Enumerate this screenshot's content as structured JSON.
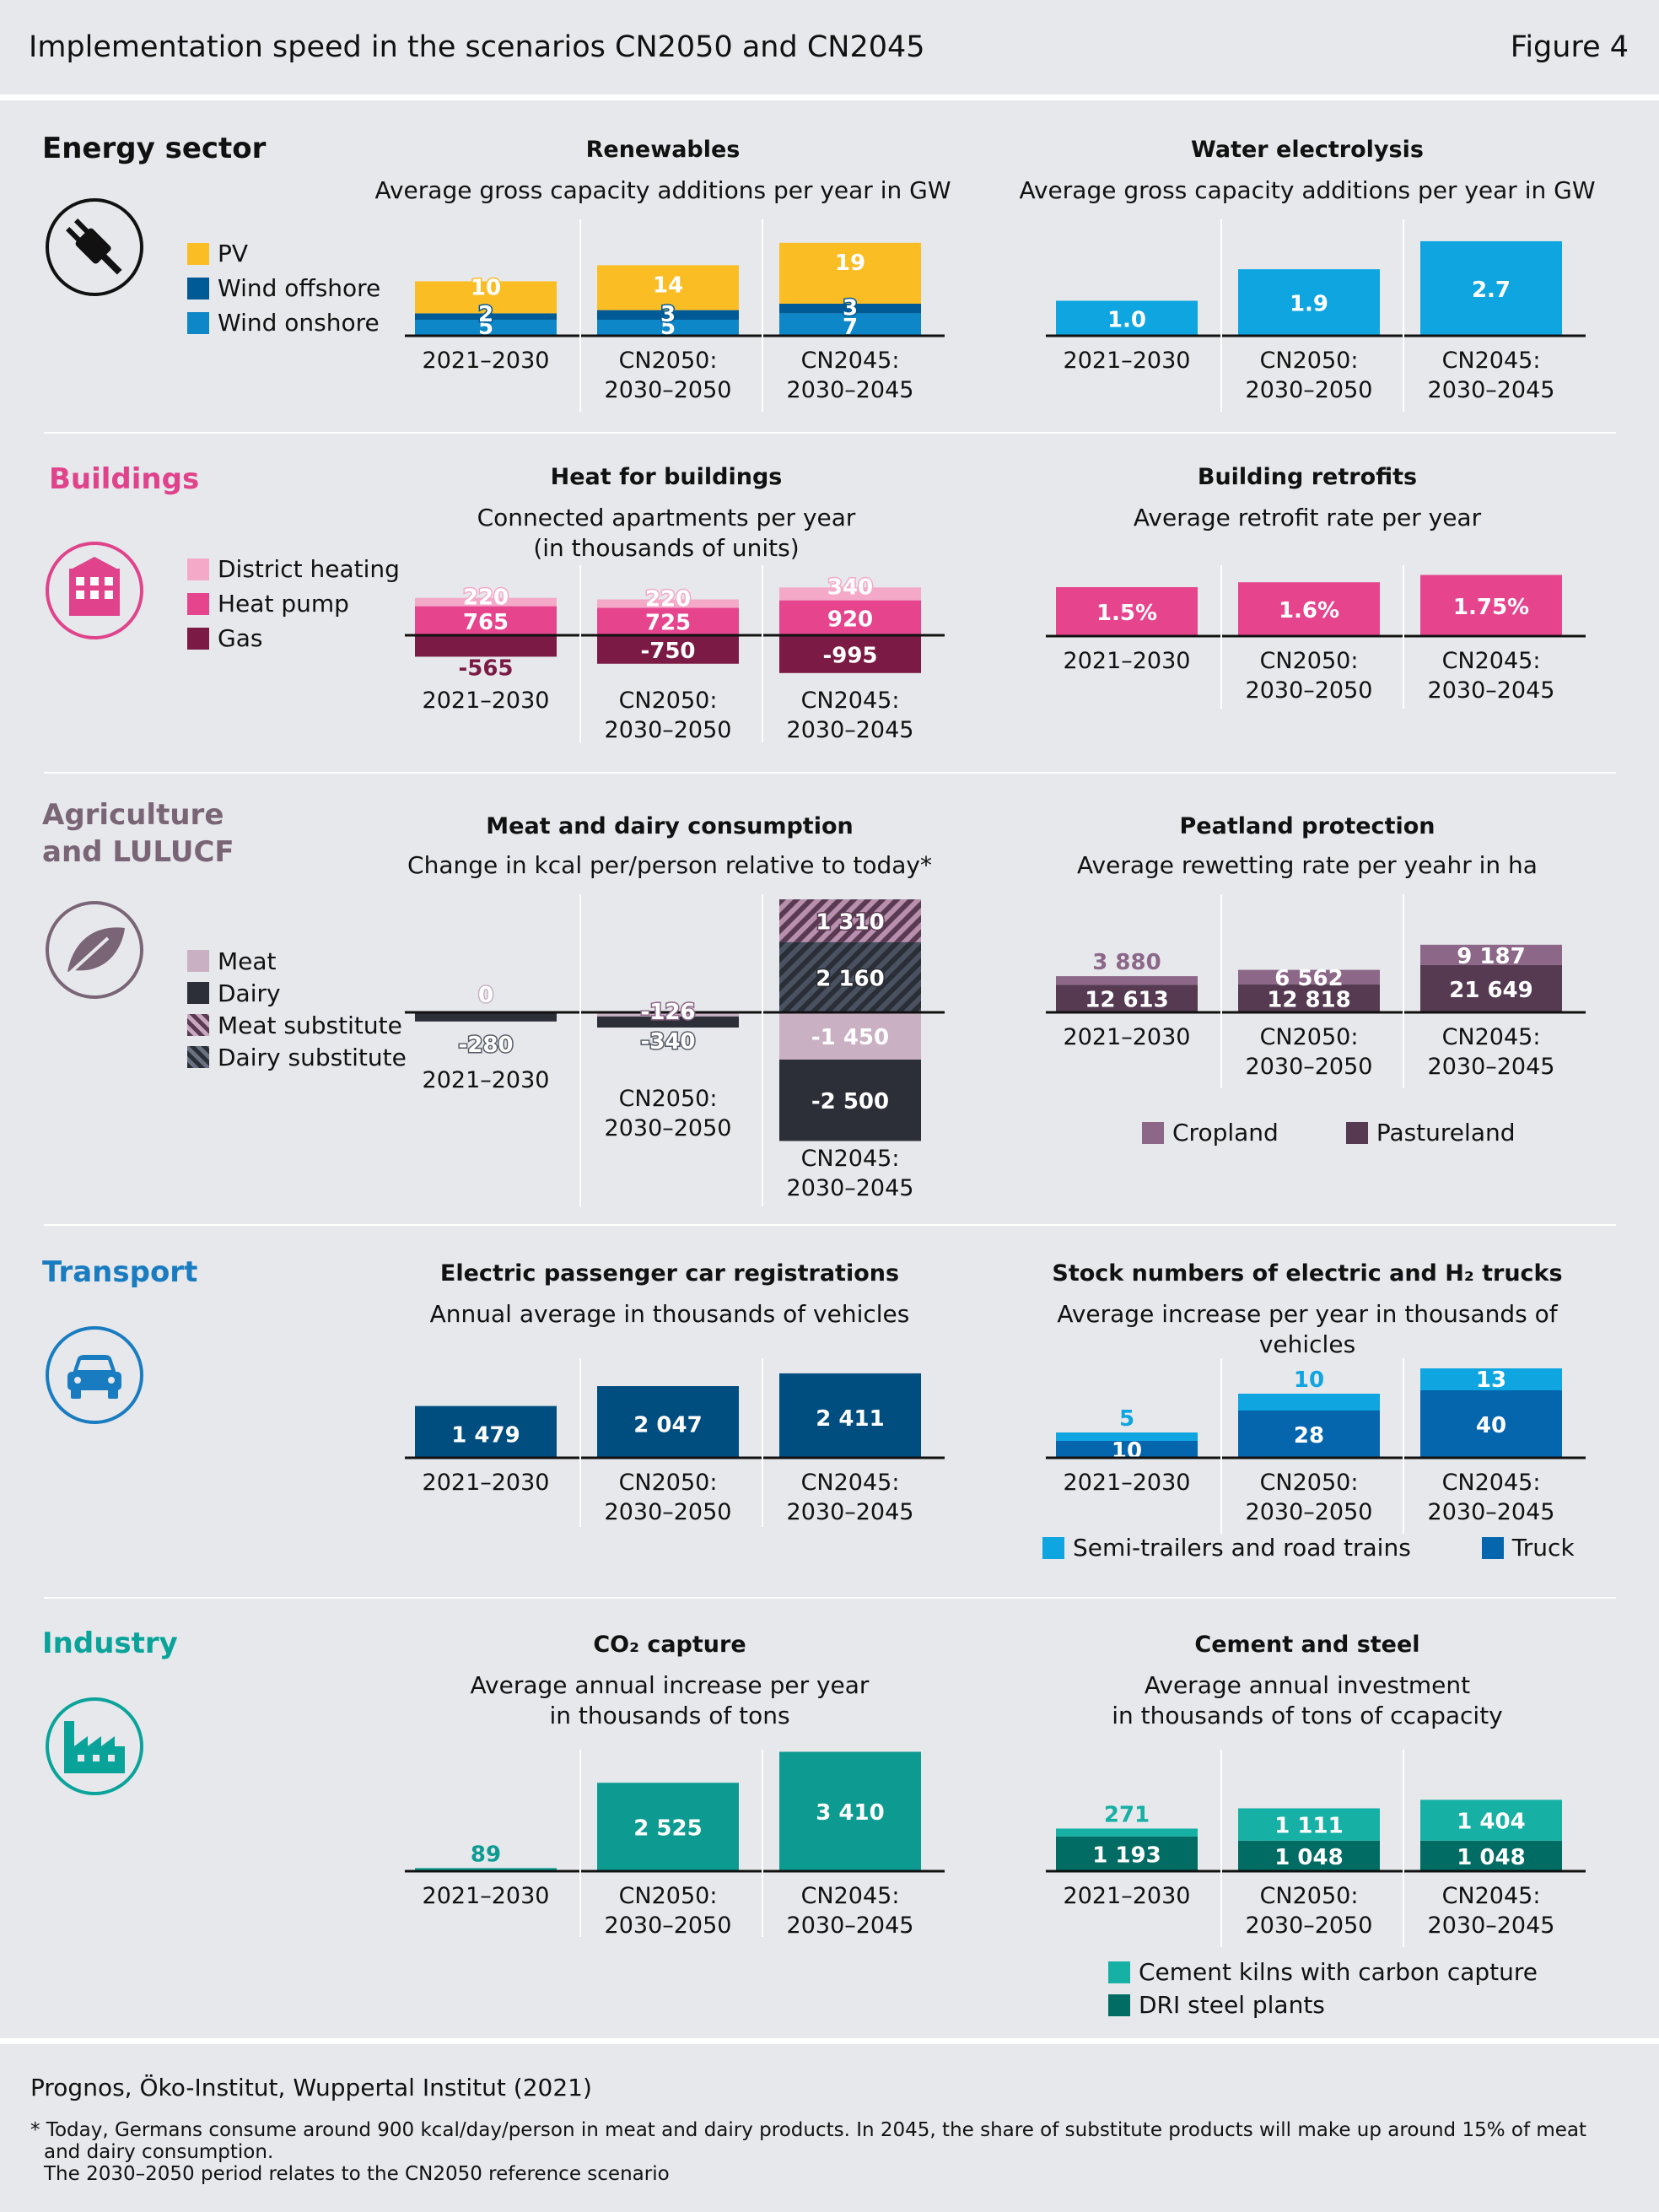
{
  "figure": {
    "title": "Implementation speed in the scenarios CN2050 and CN2045",
    "number": "Figure 4"
  },
  "footer": {
    "source": "Prognos, Öko-Institut, Wuppertal Institut (2021)",
    "note1": "* Today, Germans consume around 900 kcal/day/person in meat and dairy products. In 2045, the share of substitute products will make up around 15% of meat",
    "note2": "and dairy consumption.",
    "note3": "The 2030–2050 period relates to the CN2050 reference scenario"
  },
  "colors": {
    "pv": "#fbbd24",
    "wind_offshore": "#005a96",
    "wind_onshore": "#0e87c8",
    "electrolysis": "#0ea5e0",
    "district_heating": "#f4a9c9",
    "heat_pump": "#e7448e",
    "gas": "#7b1a45",
    "meat": "#c9b0c3",
    "dairy": "#2c2f38",
    "cropland": "#8c6788",
    "pastureland": "#553a52",
    "ev": "#004d80",
    "semi_trailers": "#0ea5e0",
    "truck": "#0566ae",
    "co2": "#0d9b91",
    "cement": "#16b0a5",
    "dri": "#006c63",
    "energy": "#111111",
    "buildings": "#e0438b",
    "agriculture": "#7a6576",
    "transport": "#1a7cc0",
    "industry": "#0aa39a"
  },
  "sections": {
    "energy": {
      "title": "Energy sector",
      "icon": "plug-icon"
    },
    "buildings": {
      "title": "Buildings",
      "icon": "building-icon"
    },
    "agriculture": {
      "title1": "Agriculture",
      "title2": "and LULUCF",
      "icon": "leaf-icon"
    },
    "transport": {
      "title": "Transport",
      "icon": "car-icon"
    },
    "industry": {
      "title": "Industry",
      "icon": "factory-icon"
    }
  },
  "legends": {
    "energy": [
      "PV",
      "Wind offshore",
      "Wind onshore"
    ],
    "buildings": [
      "District heating",
      "Heat pump",
      "Gas"
    ],
    "agriculture": [
      "Meat",
      "Dairy",
      "Meat substitute",
      "Dairy substitute"
    ],
    "peatland": [
      "Cropland",
      "Pastureland"
    ],
    "trucks": [
      "Semi-trailers and road trains",
      "Truck"
    ],
    "cement": [
      "Cement kilns with carbon capture",
      "DRI steel plants"
    ]
  },
  "chart_data": [
    {
      "id": "renewables",
      "type": "bar",
      "stacked": true,
      "title": "Renewables",
      "subtitle": "Average gross capacity additions per year in GW",
      "categories": [
        "2021–2030",
        "CN2050:\n2030–2050",
        "CN2045:\n2030–2045"
      ],
      "series": [
        {
          "name": "Wind onshore",
          "values": [
            5,
            5,
            7
          ],
          "labels": [
            "5",
            "5",
            "7"
          ]
        },
        {
          "name": "Wind offshore",
          "values": [
            2,
            3,
            3
          ],
          "labels": [
            "2",
            "3",
            "3"
          ]
        },
        {
          "name": "PV",
          "values": [
            10,
            14,
            19
          ],
          "labels": [
            "10",
            "14",
            "19"
          ]
        }
      ]
    },
    {
      "id": "electrolysis",
      "type": "bar",
      "title": "Water electrolysis",
      "subtitle": "Average gross capacity additions per year in GW",
      "categories": [
        "2021–2030",
        "CN2050:\n2030–2050",
        "CN2045:\n2030–2045"
      ],
      "series": [
        {
          "name": "",
          "values": [
            1.0,
            1.9,
            2.7
          ],
          "labels": [
            "1.0",
            "1.9",
            "2.7"
          ]
        }
      ]
    },
    {
      "id": "heat",
      "type": "bar",
      "stacked": true,
      "title": "Heat for buildings",
      "subtitle": "Connected apartments per year\n(in thousands of units)",
      "categories": [
        "2021–2030",
        "CN2050:\n2030–2050",
        "CN2045:\n2030–2045"
      ],
      "series": [
        {
          "name": "Heat pump",
          "values": [
            765,
            725,
            920
          ],
          "labels": [
            "765",
            "725",
            "920"
          ]
        },
        {
          "name": "District heating",
          "values": [
            220,
            220,
            340
          ],
          "labels": [
            "220",
            "220",
            "340"
          ]
        },
        {
          "name": "Gas",
          "values": [
            -565,
            -750,
            -995
          ],
          "labels": [
            "-565",
            "-750",
            "-995"
          ]
        }
      ]
    },
    {
      "id": "retrofit",
      "type": "bar",
      "title": "Building retrofits",
      "subtitle": "Average retrofit rate per year",
      "categories": [
        "2021–2030",
        "CN2050:\n2030–2050",
        "CN2045:\n2030–2045"
      ],
      "series": [
        {
          "name": "",
          "values": [
            1.5,
            1.6,
            1.75
          ],
          "labels": [
            "1.5%",
            "1.6%",
            "1.75%"
          ]
        }
      ]
    },
    {
      "id": "meat",
      "type": "bar",
      "stacked": true,
      "title": "Meat and dairy consumption",
      "subtitle": "Change in kcal per/person relative to today*",
      "categories": [
        "2021–2030",
        "CN2050:\n2030–2050",
        "CN2045:\n2030–2045"
      ],
      "series": [
        {
          "name": "Dairy substitute",
          "values": [
            0,
            0,
            2160
          ],
          "labels": [
            "0",
            "",
            "2 160"
          ]
        },
        {
          "name": "Meat substitute",
          "values": [
            0,
            0,
            1310
          ],
          "labels": [
            "",
            "",
            "1 310"
          ]
        },
        {
          "name": "Meat",
          "values": [
            0,
            -126,
            -1450
          ],
          "labels": [
            "",
            "-126",
            "-1 450"
          ]
        },
        {
          "name": "Dairy",
          "values": [
            -280,
            -340,
            -2500
          ],
          "labels": [
            "-280",
            "-340",
            "-2 500"
          ]
        }
      ]
    },
    {
      "id": "peatland",
      "type": "bar",
      "stacked": true,
      "title": "Peatland protection",
      "subtitle": "Average rewetting rate per yeahr in ha",
      "categories": [
        "2021–2030",
        "CN2050:\n2030–2050",
        "CN2045:\n2030–2045"
      ],
      "series": [
        {
          "name": "Pastureland",
          "values": [
            12613,
            12818,
            21649
          ],
          "labels": [
            "12 613",
            "12 818",
            "21 649"
          ]
        },
        {
          "name": "Cropland",
          "values": [
            3880,
            6562,
            9187
          ],
          "labels": [
            "3 880",
            "6 562",
            "9 187"
          ]
        }
      ]
    },
    {
      "id": "ev",
      "type": "bar",
      "title": "Electric passenger car registrations",
      "subtitle": "Annual average in thousands of vehicles",
      "categories": [
        "2021–2030",
        "CN2050:\n2030–2050",
        "CN2045:\n2030–2045"
      ],
      "series": [
        {
          "name": "",
          "values": [
            1479,
            2047,
            2411
          ],
          "labels": [
            "1 479",
            "2 047",
            "2 411"
          ]
        }
      ]
    },
    {
      "id": "trucks",
      "type": "bar",
      "stacked": true,
      "title": "Stock numbers of electric and H₂ trucks",
      "subtitle": "Average increase per year in thousands of vehicles",
      "categories": [
        "2021–2030",
        "CN2050:\n2030–2050",
        "CN2045:\n2030–2045"
      ],
      "series": [
        {
          "name": "Truck",
          "values": [
            10,
            28,
            40
          ],
          "labels": [
            "10",
            "28",
            "40"
          ]
        },
        {
          "name": "Semi-trailers and road trains",
          "values": [
            5,
            10,
            13
          ],
          "labels": [
            "5",
            "10",
            "13"
          ]
        }
      ]
    },
    {
      "id": "co2",
      "type": "bar",
      "title": "CO₂ capture",
      "subtitle": "Average annual increase per year\nin thousands of tons",
      "categories": [
        "2021–2030",
        "CN2050:\n2030–2050",
        "CN2045:\n2030–2045"
      ],
      "series": [
        {
          "name": "",
          "values": [
            89,
            2525,
            3410
          ],
          "labels": [
            "89",
            "2 525",
            "3 410"
          ]
        }
      ]
    },
    {
      "id": "cement",
      "type": "bar",
      "stacked": true,
      "title": "Cement and steel",
      "subtitle": "Average annual investment\nin thousands of tons of ccapacity",
      "categories": [
        "2021–2030",
        "CN2050:\n2030–2050",
        "CN2045:\n2030–2045"
      ],
      "series": [
        {
          "name": "DRI steel plants",
          "values": [
            1193,
            1048,
            1048
          ],
          "labels": [
            "1 193",
            "1 048",
            "1 048"
          ]
        },
        {
          "name": "Cement kilns with carbon capture",
          "values": [
            271,
            1111,
            1404
          ],
          "labels": [
            "271",
            "1 111",
            "1 404"
          ]
        }
      ]
    }
  ]
}
